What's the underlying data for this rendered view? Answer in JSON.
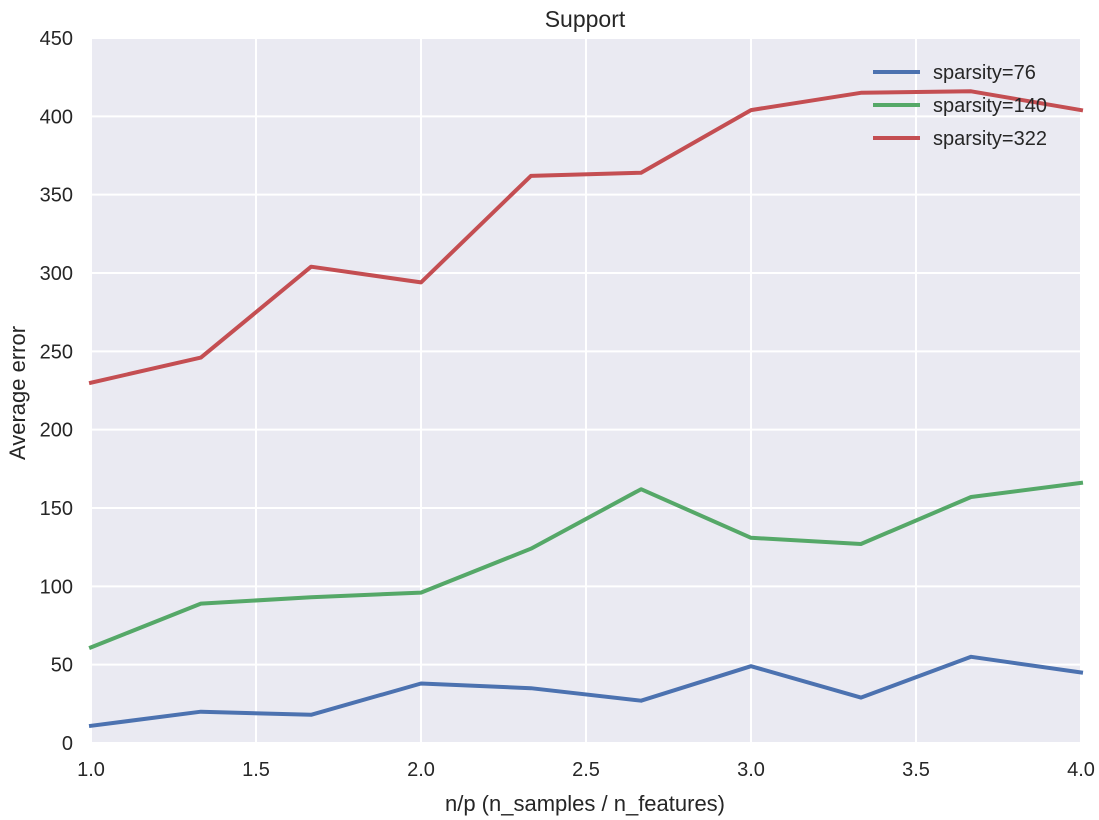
{
  "chart_data": {
    "type": "line",
    "title": "Support",
    "xlabel": "n/p (n_samples / n_features)",
    "ylabel": "Average error",
    "xlim": [
      1.0,
      4.0
    ],
    "ylim": [
      0,
      450
    ],
    "xticks": [
      1.0,
      1.5,
      2.0,
      2.5,
      3.0,
      3.5,
      4.0
    ],
    "xtick_labels": [
      "1.0",
      "1.5",
      "2.0",
      "2.5",
      "3.0",
      "3.5",
      "4.0"
    ],
    "yticks": [
      0,
      50,
      100,
      150,
      200,
      250,
      300,
      350,
      400,
      450
    ],
    "ytick_labels": [
      "0",
      "50",
      "100",
      "150",
      "200",
      "250",
      "300",
      "350",
      "400",
      "450"
    ],
    "grid": true,
    "legend_position": "top-right",
    "x": [
      1.0,
      1.333,
      1.667,
      2.0,
      2.333,
      2.667,
      3.0,
      3.333,
      3.667,
      4.0
    ],
    "series": [
      {
        "name": "sparsity=76",
        "color": "#4c72b0",
        "values": [
          11,
          20,
          18,
          38,
          35,
          27,
          49,
          29,
          55,
          45
        ]
      },
      {
        "name": "sparsity=140",
        "color": "#55a868",
        "values": [
          61,
          89,
          93,
          96,
          124,
          162,
          131,
          127,
          157,
          166
        ]
      },
      {
        "name": "sparsity=322",
        "color": "#c44e52",
        "values": [
          230,
          246,
          304,
          294,
          362,
          364,
          404,
          415,
          416,
          404
        ]
      }
    ]
  }
}
